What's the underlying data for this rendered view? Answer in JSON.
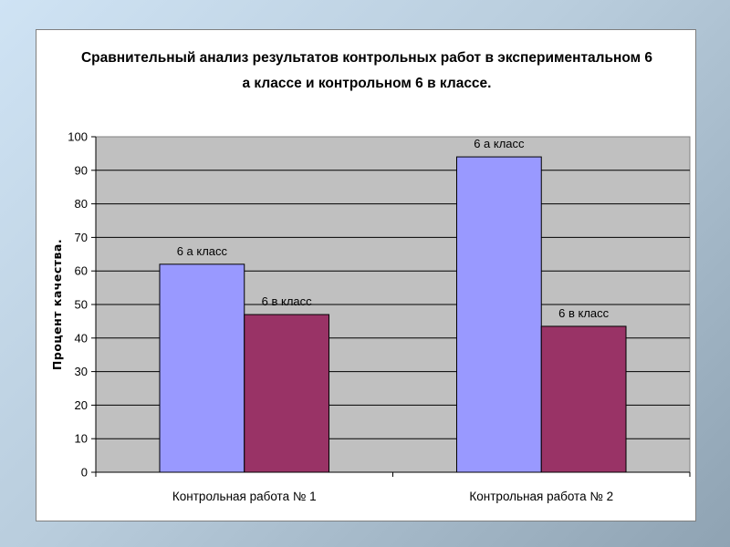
{
  "chart_data": {
    "type": "bar",
    "title_lines": [
      "Сравнительный анализ результатов контрольных работ в экспериментальном 6",
      "а классе и контрольном 6 в классе."
    ],
    "ylabel": "Процент качества.",
    "xlabel": "",
    "ylim": [
      0,
      100
    ],
    "ytick_step": 10,
    "yticks": [
      "0",
      "10",
      "20",
      "30",
      "40",
      "50",
      "60",
      "70",
      "80",
      "90",
      "100"
    ],
    "grid": true,
    "legend": "none",
    "categories": [
      "Контрольная работа № 1",
      "Контрольная работа № 2"
    ],
    "series": [
      {
        "name": "6 а класс",
        "values": [
          62,
          94
        ],
        "color": "#9999ff"
      },
      {
        "name": "6 в класс",
        "values": [
          47,
          43.5
        ],
        "color": "#993366"
      }
    ],
    "data_labels": [
      [
        "6 а класс",
        "6 а класс"
      ],
      [
        "6 в класс",
        "6 в класс"
      ]
    ],
    "plot_background": "#c0c0c0"
  }
}
